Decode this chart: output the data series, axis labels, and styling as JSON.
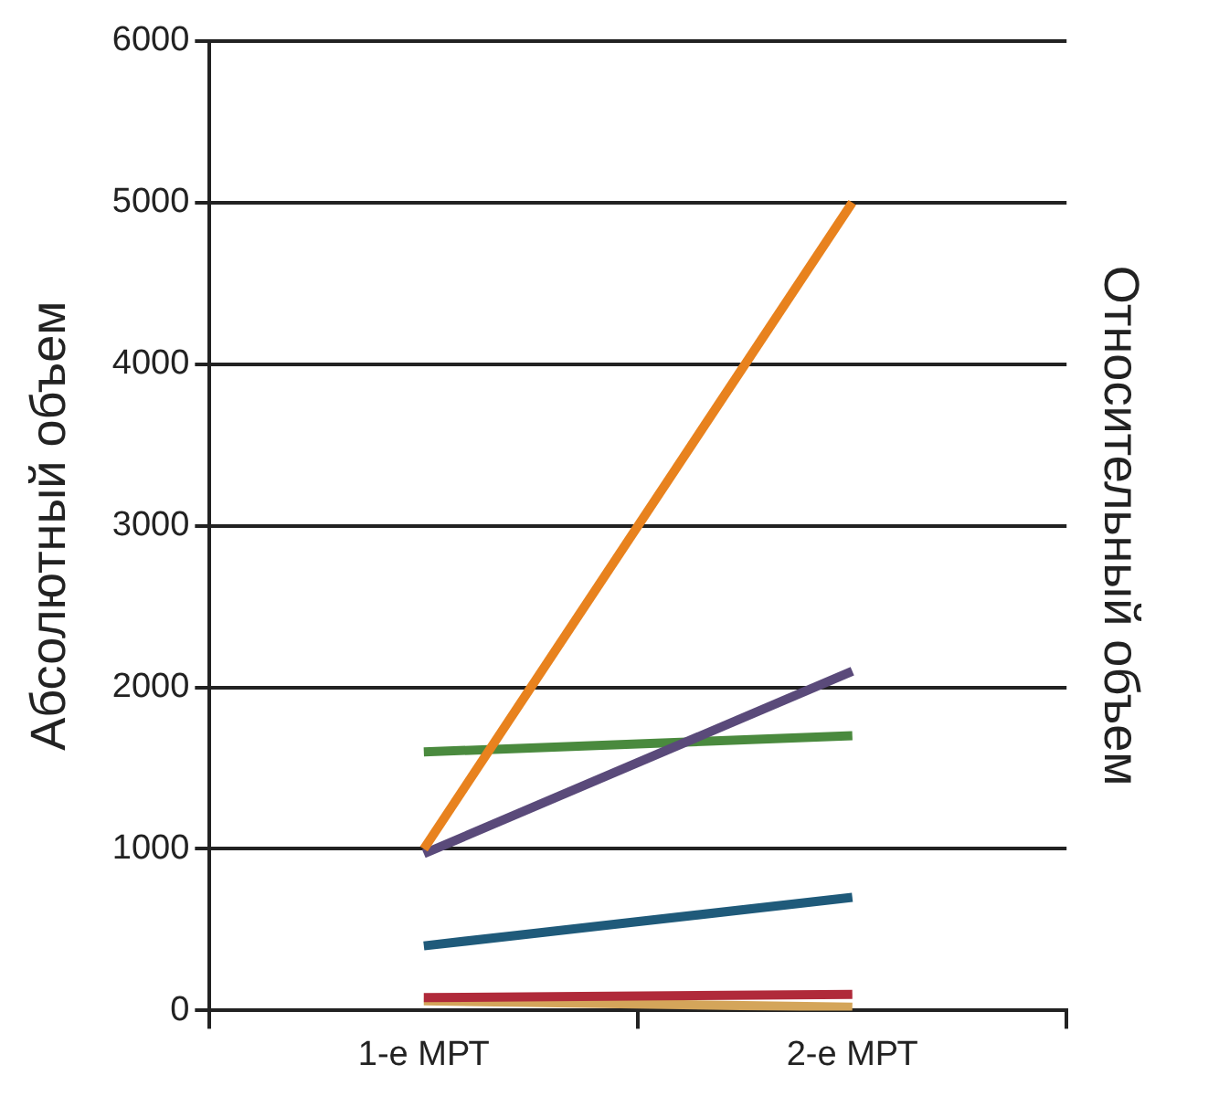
{
  "chart_data": {
    "type": "line",
    "ylabel": "Абсолютный объем",
    "y2label": "Относительный объем",
    "categories": [
      "1-е МРТ",
      "2-е МРТ"
    ],
    "ylim": [
      0,
      6000
    ],
    "yticks": [
      0,
      1000,
      2000,
      3000,
      4000,
      5000,
      6000
    ],
    "grid": "y",
    "legend": false,
    "marker": "none",
    "line_style": "solid",
    "series": [
      {
        "color": "#e8821e",
        "values": [
          1000,
          5000
        ]
      },
      {
        "color": "#5a4a7a",
        "values": [
          970,
          2100
        ]
      },
      {
        "color": "#4a8a3e",
        "values": [
          1600,
          1700
        ]
      },
      {
        "color": "#1f5a7a",
        "values": [
          400,
          700
        ]
      },
      {
        "color": "#b02a3a",
        "values": [
          80,
          100
        ]
      },
      {
        "color": "#d4a55a",
        "values": [
          60,
          20
        ]
      }
    ]
  }
}
